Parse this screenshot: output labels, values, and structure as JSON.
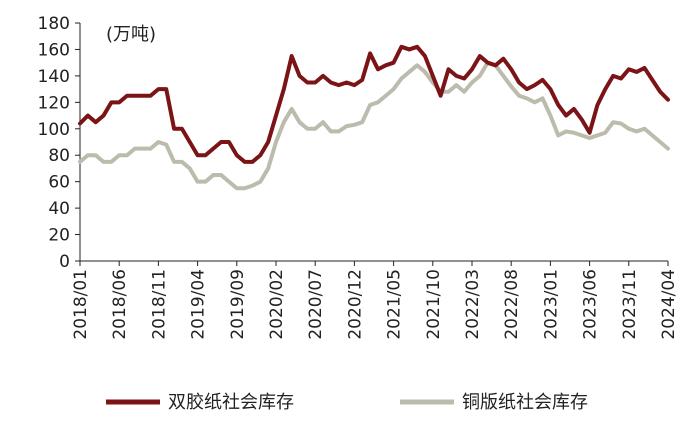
{
  "chart_data": {
    "type": "line",
    "title": "",
    "unit_label": "(万吨)",
    "xlabel": "",
    "ylabel": "",
    "ylim": [
      0,
      180
    ],
    "yticks": [
      0,
      20,
      40,
      60,
      80,
      100,
      120,
      140,
      160,
      180
    ],
    "x_tick_labels": [
      "2018/01",
      "2018/06",
      "2018/11",
      "2019/04",
      "2019/09",
      "2020/02",
      "2020/07",
      "2020/12",
      "2021/05",
      "2021/10",
      "2022/03",
      "2022/08",
      "2023/01",
      "2023/06",
      "2023/11",
      "2024/04"
    ],
    "x_start": "2018/01",
    "x_end": "2024/04",
    "legend_position": "bottom",
    "series": [
      {
        "name": "双胶纸社会库存",
        "color": "#7a1416",
        "values": [
          104,
          110,
          105,
          110,
          120,
          120,
          125,
          125,
          125,
          125,
          130,
          130,
          100,
          100,
          90,
          80,
          80,
          85,
          90,
          90,
          80,
          75,
          75,
          80,
          90,
          110,
          130,
          155,
          140,
          135,
          135,
          140,
          135,
          133,
          135,
          133,
          137,
          157,
          145,
          148,
          150,
          162,
          160,
          162,
          155,
          140,
          125,
          145,
          140,
          138,
          145,
          155,
          150,
          148,
          153,
          145,
          135,
          130,
          133,
          137,
          130,
          118,
          110,
          115,
          107,
          97,
          118,
          130,
          140,
          138,
          145,
          143,
          146,
          137,
          128,
          122
        ]
      },
      {
        "name": "铜版纸社会库存",
        "color": "#bcbcad",
        "values": [
          75,
          80,
          80,
          75,
          75,
          80,
          80,
          85,
          85,
          85,
          90,
          88,
          75,
          75,
          70,
          60,
          60,
          65,
          65,
          60,
          55,
          55,
          57,
          60,
          70,
          90,
          105,
          115,
          105,
          100,
          100,
          105,
          98,
          98,
          102,
          103,
          105,
          118,
          120,
          125,
          130,
          138,
          143,
          148,
          143,
          135,
          128,
          128,
          133,
          128,
          135,
          140,
          150,
          148,
          140,
          132,
          125,
          123,
          120,
          123,
          110,
          95,
          98,
          97,
          95,
          93,
          95,
          97,
          105,
          104,
          100,
          98,
          100,
          95,
          90,
          85
        ]
      }
    ]
  }
}
